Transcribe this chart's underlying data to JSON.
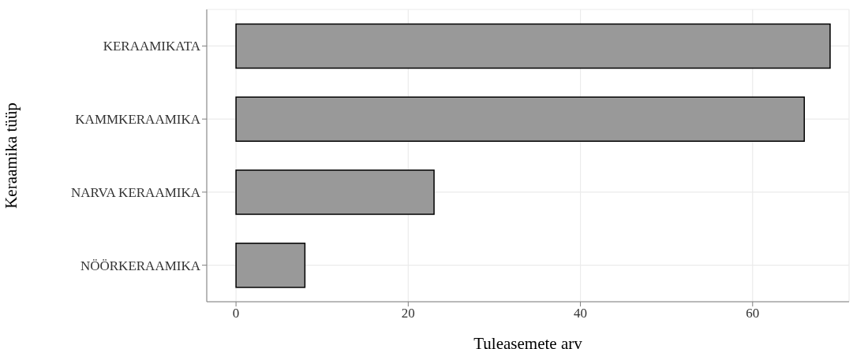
{
  "chart_data": {
    "type": "bar",
    "orientation": "horizontal",
    "xlabel": "Tuleasemete arv",
    "ylabel": "Keraamika tüüp",
    "categories": [
      "KERAAMIKATA",
      "KAMMKERAAMIKA",
      "NARVA KERAAMIKA",
      "NÖÖRKERAAMIKA"
    ],
    "values": [
      69,
      66,
      23,
      8
    ],
    "color": "#999999",
    "xlim": [
      -3.4,
      71.2
    ],
    "xticks": [
      0,
      20,
      40,
      60
    ],
    "grid": true
  }
}
